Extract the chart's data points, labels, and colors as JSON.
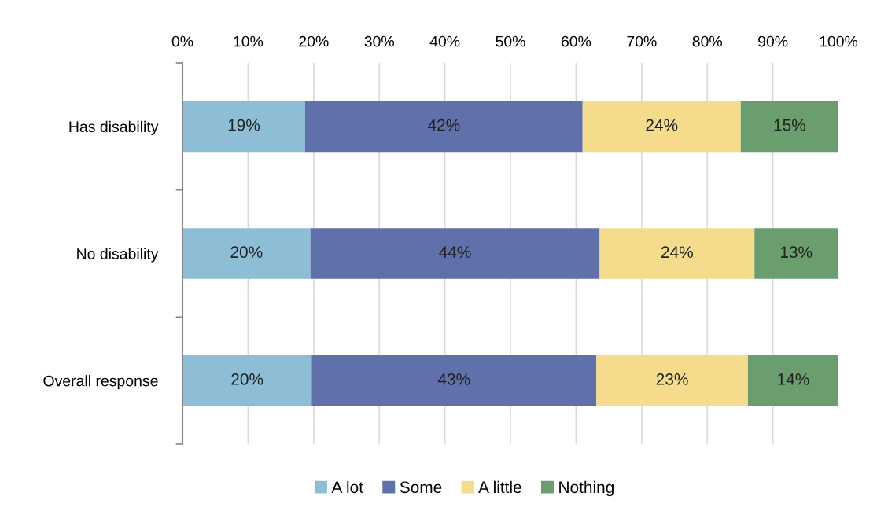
{
  "chart_data": {
    "type": "bar",
    "orientation": "horizontal",
    "stacked": true,
    "categories": [
      "Has disability",
      "No disability",
      "Overall response"
    ],
    "series": [
      {
        "name": "A lot",
        "color": "#8dbed6",
        "values": [
          18.7,
          19.5,
          19.7
        ],
        "value_labels": [
          "19%",
          "20%",
          "20%"
        ]
      },
      {
        "name": "Some",
        "color": "#6070aa",
        "values": [
          42.3,
          44.1,
          43.4
        ],
        "value_labels": [
          "42%",
          "44%",
          "43%"
        ]
      },
      {
        "name": "A little",
        "color": "#f5dc8c",
        "values": [
          24.1,
          23.6,
          23.1
        ],
        "value_labels": [
          "24%",
          "24%",
          "23%"
        ]
      },
      {
        "name": "Nothing",
        "color": "#6a9e6e",
        "values": [
          14.9,
          12.7,
          13.8
        ],
        "value_labels": [
          "15%",
          "13%",
          "14%"
        ]
      }
    ],
    "xlim": [
      0,
      100
    ],
    "xticks": [
      {
        "value": 0,
        "label": "0%"
      },
      {
        "value": 10,
        "label": "10%"
      },
      {
        "value": 20,
        "label": "20%"
      },
      {
        "value": 30,
        "label": "30%"
      },
      {
        "value": 40,
        "label": "40%"
      },
      {
        "value": 50,
        "label": "50%"
      },
      {
        "value": 60,
        "label": "60%"
      },
      {
        "value": 70,
        "label": "70%"
      },
      {
        "value": 80,
        "label": "80%"
      },
      {
        "value": 90,
        "label": "90%"
      },
      {
        "value": 100,
        "label": "100%"
      }
    ],
    "grid": "x",
    "legend": "bottom"
  }
}
